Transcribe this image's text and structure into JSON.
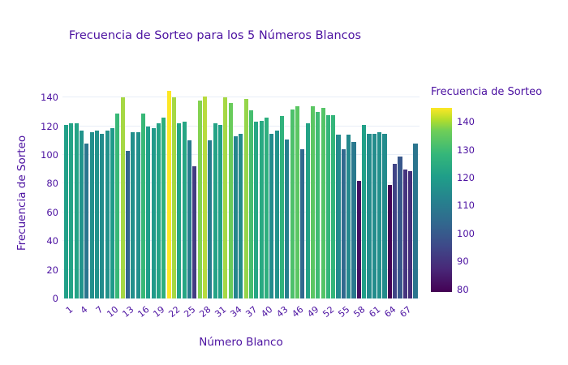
{
  "title": "Frecuencia de Sorteo para los 5 Números Blancos",
  "xaxis": {
    "title": "Número Blanco",
    "tick_values": [
      1,
      4,
      7,
      10,
      13,
      16,
      19,
      22,
      25,
      28,
      31,
      34,
      37,
      40,
      43,
      46,
      49,
      52,
      55,
      58,
      61,
      64,
      67
    ]
  },
  "yaxis": {
    "title": "Frecuencia de Sorteo",
    "tick_values": [
      0,
      20,
      40,
      60,
      80,
      100,
      120,
      140
    ]
  },
  "colorbar": {
    "title": "Frecuencia de Sorteo",
    "tick_values": [
      80,
      90,
      100,
      110,
      120,
      130,
      140
    ]
  },
  "colors": {
    "text": "#4c12a1",
    "gridline": "#e8eef7",
    "background": "#ffffff",
    "colorscale": "viridis"
  },
  "chart_data": {
    "type": "bar",
    "title": "Frecuencia de Sorteo para los 5 Números Blancos",
    "xlabel": "Número Blanco",
    "ylabel": "Frecuencia de Sorteo",
    "x": [
      1,
      2,
      3,
      4,
      5,
      6,
      7,
      8,
      9,
      10,
      11,
      12,
      13,
      14,
      15,
      16,
      17,
      18,
      19,
      20,
      21,
      22,
      23,
      24,
      25,
      26,
      27,
      28,
      29,
      30,
      31,
      32,
      33,
      34,
      35,
      36,
      37,
      38,
      39,
      40,
      41,
      42,
      43,
      44,
      45,
      46,
      47,
      48,
      49,
      50,
      51,
      52,
      53,
      54,
      55,
      56,
      57,
      58,
      59,
      60,
      61,
      62,
      63,
      64,
      65,
      66,
      67,
      68,
      69
    ],
    "values": [
      121,
      122,
      122,
      117,
      108,
      116,
      117,
      115,
      117,
      119,
      129,
      140,
      103,
      116,
      116,
      129,
      120,
      119,
      122,
      126,
      145,
      140,
      122,
      123,
      110,
      92,
      138,
      141,
      110,
      122,
      121,
      140,
      136,
      113,
      115,
      139,
      131,
      123,
      124,
      126,
      115,
      117,
      127,
      111,
      132,
      134,
      104,
      122,
      134,
      130,
      133,
      128,
      128,
      114,
      104,
      114,
      109,
      82,
      121,
      115,
      115,
      116,
      115,
      79,
      94,
      99,
      90,
      89,
      108
    ],
    "ylim": [
      0,
      147
    ],
    "color_range": [
      79,
      145
    ],
    "grid": true,
    "legend_position": "right-colorbar"
  }
}
